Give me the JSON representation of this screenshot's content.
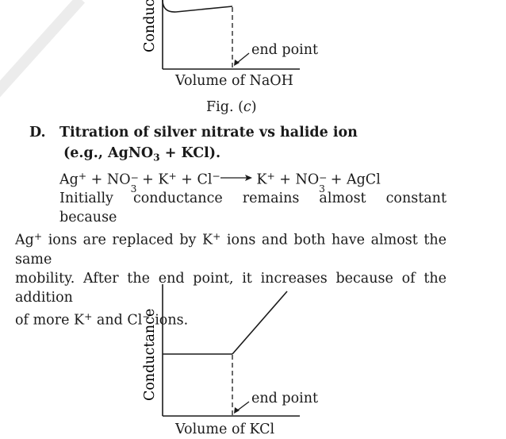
{
  "graph_top": {
    "ylabel": "Conduc",
    "xlabel": "Volume of NaOH",
    "annotation": "end point"
  },
  "caption": {
    "prefix": "Fig. (",
    "letter": "c",
    "suffix": ")"
  },
  "section": {
    "marker": "D.",
    "title": "Titration of silver nitrate vs halide ion",
    "example": {
      "open": "(e.g., AgNO",
      "sub": "3",
      "close": " + KCl)."
    }
  },
  "equation": {
    "ag": "Ag",
    "ag_charge": "+",
    "plus": " + ",
    "no": "NO",
    "no_sub": "3",
    "no_charge": "−",
    "k": "K",
    "k_charge": "+",
    "cl": "Cl",
    "cl_charge": "−",
    "k2": "K",
    "k2_charge": "+",
    "no2": "NO",
    "no2_sub": "3",
    "no2_charge": "−",
    "agcl": "AgCl"
  },
  "paragraph": {
    "l1": "Initially conductance remains almost constant because",
    "l2_ag": "Ag",
    "l2_ag_charge": "+",
    "l2_mid": " ions are replaced by K",
    "l2_k_charge": "+",
    "l2_end": " ions and both have almost the same",
    "l3": "mobility. After the end point, it increases because of the addition",
    "l4_pre": "of more K",
    "l4_k_charge": "+",
    "l4_mid": " and Cl",
    "l4_cl_charge": "−",
    "l4_end": " ions."
  },
  "graph_bottom": {
    "ylabel": "Conductance",
    "xlabel": "Volume of KCl",
    "annotation": "end point"
  }
}
